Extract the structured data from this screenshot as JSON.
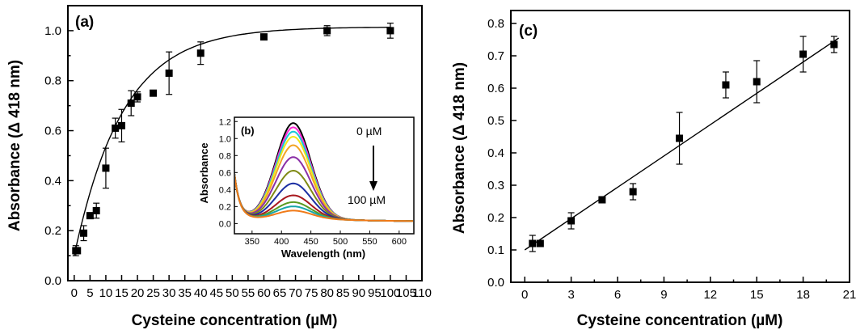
{
  "chart_data": [
    {
      "panel": "(a)",
      "type": "scatter",
      "xlabel": "Cysteine concentration (µM)",
      "ylabel": "Absorbance (Δ 418 nm)",
      "xlim": [
        -2,
        110
      ],
      "ylim": [
        0,
        1.1
      ],
      "xticks": [
        "0",
        "5",
        "10",
        "15",
        "20",
        "25",
        "30",
        "35",
        "40",
        "45",
        "50",
        "55",
        "60",
        "65",
        "70",
        "75",
        "80",
        "85",
        "90",
        "95",
        "100",
        "105",
        "110"
      ],
      "yticks": [
        "0.0",
        "0.2",
        "0.4",
        "0.6",
        "0.8",
        "1.0"
      ],
      "series": [
        {
          "x": [
            0.5,
            1,
            3,
            5,
            7,
            10,
            13,
            15,
            18,
            20,
            25,
            30,
            40,
            60,
            80,
            100
          ],
          "y": [
            0.12,
            0.12,
            0.19,
            0.26,
            0.28,
            0.45,
            0.61,
            0.62,
            0.71,
            0.735,
            0.75,
            0.83,
            0.91,
            0.975,
            1.0,
            1.0
          ],
          "err": [
            0.02,
            0.005,
            0.03,
            0.005,
            0.03,
            0.08,
            0.04,
            0.065,
            0.05,
            0.02,
            0.005,
            0.085,
            0.045,
            0.01,
            0.02,
            0.03
          ]
        }
      ],
      "fit": "saturation curve"
    },
    {
      "panel": "(b)",
      "type": "line",
      "xlabel": "Wavelength (nm)",
      "ylabel": "Absorbance",
      "xlim": [
        320,
        625
      ],
      "ylim": [
        -0.12,
        1.25
      ],
      "xticks": [
        "350",
        "400",
        "450",
        "500",
        "550",
        "600"
      ],
      "yticks": [
        "0.0",
        "0.2",
        "0.4",
        "0.6",
        "0.8",
        "1.0",
        "1.2"
      ],
      "annotation_top": "0 µM",
      "annotation_bottom": "100 µM",
      "peak_x": 420,
      "series": [
        {
          "peak": 1.13,
          "color": "#000000"
        },
        {
          "peak": 1.08,
          "color": "#ff2ad4"
        },
        {
          "peak": 1.03,
          "color": "#19c8d8"
        },
        {
          "peak": 0.97,
          "color": "#f0e61a"
        },
        {
          "peak": 0.87,
          "color": "#f2a526"
        },
        {
          "peak": 0.73,
          "color": "#8a2fa6"
        },
        {
          "peak": 0.57,
          "color": "#7f8a14"
        },
        {
          "peak": 0.42,
          "color": "#1b2ea3"
        },
        {
          "peak": 0.28,
          "color": "#a8181e"
        },
        {
          "peak": 0.2,
          "color": "#5b9a1f"
        },
        {
          "peak": 0.15,
          "color": "#17a6a8"
        },
        {
          "peak": 0.1,
          "color": "#f07a18"
        }
      ]
    },
    {
      "panel": "(c)",
      "type": "scatter",
      "xlabel": "Cysteine concentration (µM)",
      "ylabel": "Absorbance (Δ 418 nm)",
      "xlim": [
        -0.9,
        21
      ],
      "ylim": [
        0,
        0.84
      ],
      "xticks": [
        "0",
        "3",
        "6",
        "9",
        "12",
        "15",
        "18",
        "21"
      ],
      "yticks": [
        "0.0",
        "0.1",
        "0.2",
        "0.3",
        "0.4",
        "0.5",
        "0.6",
        "0.7",
        "0.8"
      ],
      "series": [
        {
          "x": [
            0.5,
            1,
            3,
            5,
            7,
            10,
            13,
            15,
            18,
            20
          ],
          "y": [
            0.12,
            0.12,
            0.19,
            0.255,
            0.28,
            0.445,
            0.61,
            0.62,
            0.705,
            0.735
          ],
          "err": [
            0.025,
            0.005,
            0.025,
            0.005,
            0.025,
            0.08,
            0.04,
            0.065,
            0.055,
            0.025
          ]
        }
      ],
      "fit_line": {
        "x0": 0,
        "y0": 0.1,
        "x1": 20.3,
        "y1": 0.755
      }
    }
  ]
}
